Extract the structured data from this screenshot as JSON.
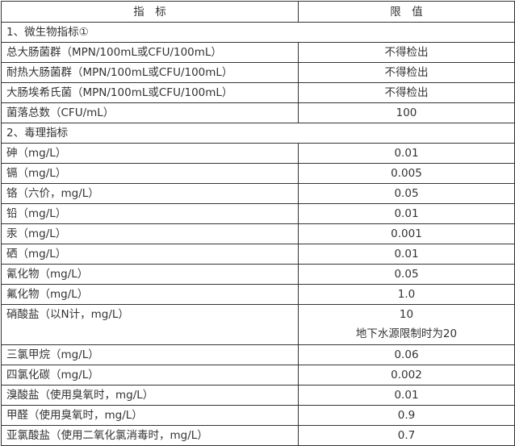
{
  "header": {
    "indicator": "指　标",
    "limit": "限　值"
  },
  "sections": [
    {
      "title": "1、微生物指标①",
      "rows": [
        {
          "name": "总大肠菌群（MPN/100mL或CFU/100mL）",
          "value": "不得检出"
        },
        {
          "name": "耐热大肠菌群（MPN/100mL或CFU/100mL）",
          "value": "不得检出"
        },
        {
          "name": "大肠埃希氏菌（MPN/100mL或CFU/100mL）",
          "value": "不得检出"
        },
        {
          "name": "菌落总数（CFU/mL）",
          "value": "100"
        }
      ]
    },
    {
      "title": "2、毒理指标",
      "rows": [
        {
          "name": "砷（mg/L）",
          "value": "0.01"
        },
        {
          "name": "镉（mg/L）",
          "value": "0.005"
        },
        {
          "name": "铬（六价，mg/L）",
          "value": "0.05"
        },
        {
          "name": "铅（mg/L）",
          "value": "0.01"
        },
        {
          "name": "汞（mg/L）",
          "value": "0.001"
        },
        {
          "name": "硒（mg/L）",
          "value": "0.01"
        },
        {
          "name": "氰化物（mg/L）",
          "value": "0.05"
        },
        {
          "name": "氟化物（mg/L）",
          "value": "1.0"
        },
        {
          "name": "硝酸盐（以N计，mg/L）",
          "value": "10",
          "note": "地下水源限制时为20"
        },
        {
          "name": "三氯甲烷（mg/L）",
          "value": "0.06"
        },
        {
          "name": "四氯化碳（mg/L）",
          "value": "0.002"
        },
        {
          "name": "溴酸盐（使用臭氧时，mg/L）",
          "value": "0.01"
        },
        {
          "name": "甲醛（使用臭氧时，mg/L）",
          "value": "0.9"
        },
        {
          "name": "亚氯酸盐（使用二氧化氯消毒时，mg/L）",
          "value": "0.7"
        }
      ]
    }
  ]
}
